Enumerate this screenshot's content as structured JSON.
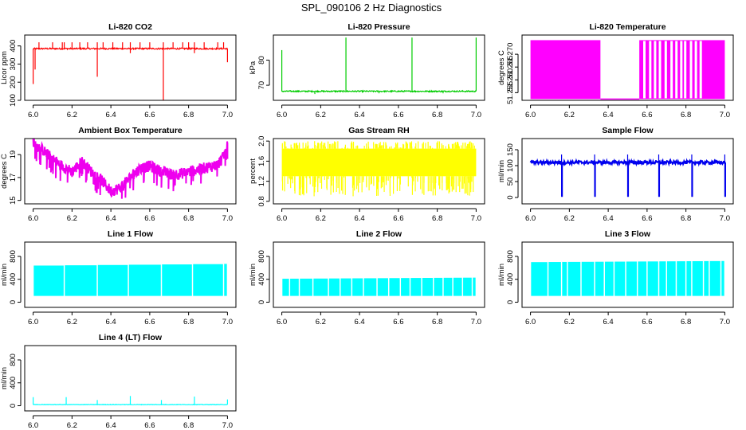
{
  "figure_title": "SPL_090106  2 Hz Diagnostics",
  "chart_data": [
    {
      "type": "line",
      "title": "Li-820 CO2",
      "xlabel": "",
      "ylabel": "Licor ppm",
      "xlim": [
        6.0,
        7.0
      ],
      "ylim": [
        100,
        460
      ],
      "color": "#ff0000",
      "x_ticks": [
        6.0,
        6.2,
        6.4,
        6.6,
        6.8,
        7.0
      ],
      "x_tick_labels": [
        "6.0",
        "6.2",
        "6.4",
        "6.6",
        "6.8",
        "7.0"
      ],
      "y_ticks": [
        100,
        200,
        300,
        400
      ],
      "y_tick_labels": [
        "100",
        "200",
        "300",
        "400"
      ],
      "series": [
        {
          "name": "CO2",
          "baseline": 385,
          "noise": 4,
          "spikes_up": [
            6.03,
            6.1,
            6.15,
            6.16,
            6.2,
            6.24,
            6.28,
            6.33,
            6.36,
            6.41,
            6.46,
            6.5,
            6.55,
            6.6,
            6.67,
            6.72,
            6.77,
            6.8,
            6.83,
            6.88,
            6.95,
            6.98
          ],
          "spike_up_to": 420,
          "spikes_down": [
            [
              6.0,
              190
            ],
            [
              6.01,
              270
            ],
            [
              6.33,
              230
            ],
            [
              6.5,
              360
            ],
            [
              6.67,
              100
            ],
            [
              6.83,
              360
            ],
            [
              7.0,
              310
            ]
          ]
        }
      ]
    },
    {
      "type": "line",
      "title": "Li-820 Pressure",
      "xlabel": "",
      "ylabel": "kPa",
      "xlim": [
        6.0,
        7.0
      ],
      "ylim": [
        64,
        90
      ],
      "color": "#00cc00",
      "x_ticks": [
        6.0,
        6.2,
        6.4,
        6.6,
        6.8,
        7.0
      ],
      "x_tick_labels": [
        "6.0",
        "6.2",
        "6.4",
        "6.6",
        "6.8",
        "7.0"
      ],
      "y_ticks": [
        70,
        80
      ],
      "y_tick_labels": [
        "70",
        "80"
      ],
      "series": [
        {
          "name": "Pressure",
          "baseline": 67.6,
          "noise": 0.25,
          "spikes_up": [
            [
              6.0,
              84
            ],
            [
              6.33,
              89
            ],
            [
              6.67,
              89
            ],
            [
              7.0,
              89
            ]
          ],
          "spikes_down": [
            [
              6.17,
              66.5
            ],
            [
              6.5,
              66.8
            ],
            [
              6.83,
              66.8
            ]
          ]
        }
      ]
    },
    {
      "type": "line",
      "title": "Li-820 Temperature",
      "xlabel": "",
      "ylabel": "degrees C",
      "xlim": [
        6.0,
        7.0
      ],
      "ylim": [
        51.252,
        51.2775
      ],
      "color": "#ff00ff",
      "x_ticks": [
        6.0,
        6.2,
        6.4,
        6.6,
        6.8,
        7.0
      ],
      "x_tick_labels": [
        "6.0",
        "6.2",
        "6.4",
        "6.6",
        "6.8",
        "7.0"
      ],
      "y_ticks": [
        51.255,
        51.26,
        51.265,
        51.27
      ],
      "y_tick_labels": [
        "51.255",
        "51.260",
        "51.265",
        "51.270"
      ],
      "series": [
        {
          "name": "Temperature",
          "low": 51.2525,
          "high": 51.2755,
          "toggle_start": 6.0,
          "toggle_end": 6.36,
          "flat_low_start": 6.36,
          "flat_low_end": 6.56,
          "toggle2_start": 6.56,
          "toggle2_end": 7.0
        }
      ]
    },
    {
      "type": "line",
      "title": "Ambient Box Temperature",
      "xlabel": "",
      "ylabel": "degrees C",
      "xlim": [
        6.0,
        7.0
      ],
      "ylim": [
        14.7,
        20.4
      ],
      "color": "#ee00ee",
      "x_ticks": [
        6.0,
        6.2,
        6.4,
        6.6,
        6.8,
        7.0
      ],
      "x_tick_labels": [
        "6.0",
        "6.2",
        "6.4",
        "6.6",
        "6.8",
        "7.0"
      ],
      "y_ticks": [
        15,
        17,
        19
      ],
      "y_tick_labels": [
        "15",
        "17",
        "19"
      ],
      "series": [
        {
          "name": "Ambient",
          "x": [
            6.0,
            6.05,
            6.1,
            6.15,
            6.2,
            6.25,
            6.3,
            6.35,
            6.4,
            6.45,
            6.5,
            6.55,
            6.6,
            6.65,
            6.7,
            6.75,
            6.8,
            6.85,
            6.9,
            6.95,
            6.98,
            7.0
          ],
          "y": [
            20.0,
            19.4,
            18.6,
            18.0,
            17.5,
            18.4,
            17.5,
            16.8,
            15.8,
            16.1,
            17.0,
            17.8,
            18.0,
            17.6,
            17.3,
            17.3,
            17.5,
            17.7,
            17.9,
            18.1,
            18.8,
            19.8
          ],
          "band": 0.5
        }
      ]
    },
    {
      "type": "line",
      "title": "Gas Stream RH",
      "xlabel": "",
      "ylabel": "percent",
      "xlim": [
        6.0,
        7.0
      ],
      "ylim": [
        0.75,
        2.05
      ],
      "color": "#ffff00",
      "x_ticks": [
        6.0,
        6.2,
        6.4,
        6.6,
        6.8,
        7.0
      ],
      "x_tick_labels": [
        "6.0",
        "6.2",
        "6.4",
        "6.6",
        "6.8",
        "7.0"
      ],
      "y_ticks": [
        0.8,
        1.2,
        1.6,
        2.0
      ],
      "y_tick_labels": [
        "0.8",
        "1.2",
        "1.6",
        "2.0"
      ],
      "series": [
        {
          "name": "RH",
          "solid_low": 1.3,
          "solid_high": 1.85,
          "spike_low": 0.9,
          "spike_high": 2.0
        }
      ]
    },
    {
      "type": "line",
      "title": "Sample Flow",
      "xlabel": "",
      "ylabel": "ml/min",
      "xlim": [
        6.0,
        7.0
      ],
      "ylim": [
        -20,
        185
      ],
      "color": "#0000ee",
      "x_ticks": [
        6.0,
        6.2,
        6.4,
        6.6,
        6.8,
        7.0
      ],
      "x_tick_labels": [
        "6.0",
        "6.2",
        "6.4",
        "6.6",
        "6.8",
        "7.0"
      ],
      "y_ticks": [
        0,
        50,
        100,
        150
      ],
      "y_tick_labels": [
        "0",
        "50",
        "100",
        "150"
      ],
      "series": [
        {
          "name": "Sample",
          "baseline": 110,
          "noise": 5,
          "dips": [
            6.16,
            6.33,
            6.5,
            6.66,
            6.83,
            7.0
          ],
          "dip_to": 2,
          "dip_peak": 135
        }
      ]
    },
    {
      "type": "line",
      "title": "Line 1 Flow",
      "xlabel": "",
      "ylabel": "ml/min",
      "xlim": [
        6.0,
        7.0
      ],
      "ylim": [
        -90,
        1050
      ],
      "color": "#00ffff",
      "x_ticks": [
        6.0,
        6.2,
        6.4,
        6.6,
        6.8,
        7.0
      ],
      "x_tick_labels": [
        "6.0",
        "6.2",
        "6.4",
        "6.6",
        "6.8",
        "7.0"
      ],
      "y_ticks": [
        0,
        400,
        800
      ],
      "y_tick_labels": [
        "0",
        "400",
        "800"
      ],
      "series": [
        {
          "name": "Line 1",
          "low": 110,
          "high": 640,
          "high_end": 670,
          "gaps": [
            6.16,
            6.33,
            6.49,
            6.66,
            6.82,
            6.98
          ]
        }
      ]
    },
    {
      "type": "line",
      "title": "Line 2 Flow",
      "xlabel": "",
      "ylabel": "ml/min",
      "xlim": [
        6.0,
        7.0
      ],
      "ylim": [
        -90,
        1050
      ],
      "color": "#00ffff",
      "x_ticks": [
        6.0,
        6.2,
        6.4,
        6.6,
        6.8,
        7.0
      ],
      "x_tick_labels": [
        "6.0",
        "6.2",
        "6.4",
        "6.6",
        "6.8",
        "7.0"
      ],
      "y_ticks": [
        0,
        400,
        800
      ],
      "y_tick_labels": [
        "0",
        "400",
        "800"
      ],
      "series": [
        {
          "name": "Line 2",
          "low": 110,
          "high": 410,
          "high_end": 430,
          "gaps": [
            6.04,
            6.09,
            6.16,
            6.24,
            6.3,
            6.36,
            6.42,
            6.49,
            6.55,
            6.61,
            6.66,
            6.72,
            6.78,
            6.83,
            6.88,
            6.93,
            6.98
          ]
        }
      ]
    },
    {
      "type": "line",
      "title": "Line 3 Flow",
      "xlabel": "",
      "ylabel": "ml/min",
      "xlim": [
        6.0,
        7.0
      ],
      "ylim": [
        -90,
        1050
      ],
      "color": "#00ffff",
      "x_ticks": [
        6.0,
        6.2,
        6.4,
        6.6,
        6.8,
        7.0
      ],
      "x_tick_labels": [
        "6.0",
        "6.2",
        "6.4",
        "6.6",
        "6.8",
        "7.0"
      ],
      "y_ticks": [
        0,
        400,
        800
      ],
      "y_tick_labels": [
        "0",
        "400",
        "800"
      ],
      "series": [
        {
          "name": "Line 3",
          "low": 110,
          "high": 700,
          "high_end": 720,
          "gaps": [
            6.09,
            6.16,
            6.19,
            6.26,
            6.33,
            6.38,
            6.43,
            6.49,
            6.55,
            6.6,
            6.66,
            6.7,
            6.75,
            6.8,
            6.83,
            6.89,
            6.92,
            6.98
          ]
        }
      ]
    },
    {
      "type": "line",
      "title": "Line 4 (LT) Flow",
      "xlabel": "",
      "ylabel": "ml/min",
      "xlim": [
        6.0,
        7.0
      ],
      "ylim": [
        -90,
        1050
      ],
      "color": "#00ffff",
      "x_ticks": [
        6.0,
        6.2,
        6.4,
        6.6,
        6.8,
        7.0
      ],
      "x_tick_labels": [
        "6.0",
        "6.2",
        "6.4",
        "6.6",
        "6.8",
        "7.0"
      ],
      "y_ticks": [
        0,
        400,
        800
      ],
      "y_tick_labels": [
        "0",
        "400",
        "800"
      ],
      "series": [
        {
          "name": "Line 4",
          "baseline": 20,
          "noise": 4,
          "spikes_up": [
            [
              6.0,
              150
            ],
            [
              6.17,
              150
            ],
            [
              6.33,
              100
            ],
            [
              6.5,
              170
            ],
            [
              6.66,
              100
            ],
            [
              6.83,
              160
            ],
            [
              7.0,
              110
            ]
          ]
        }
      ]
    }
  ]
}
